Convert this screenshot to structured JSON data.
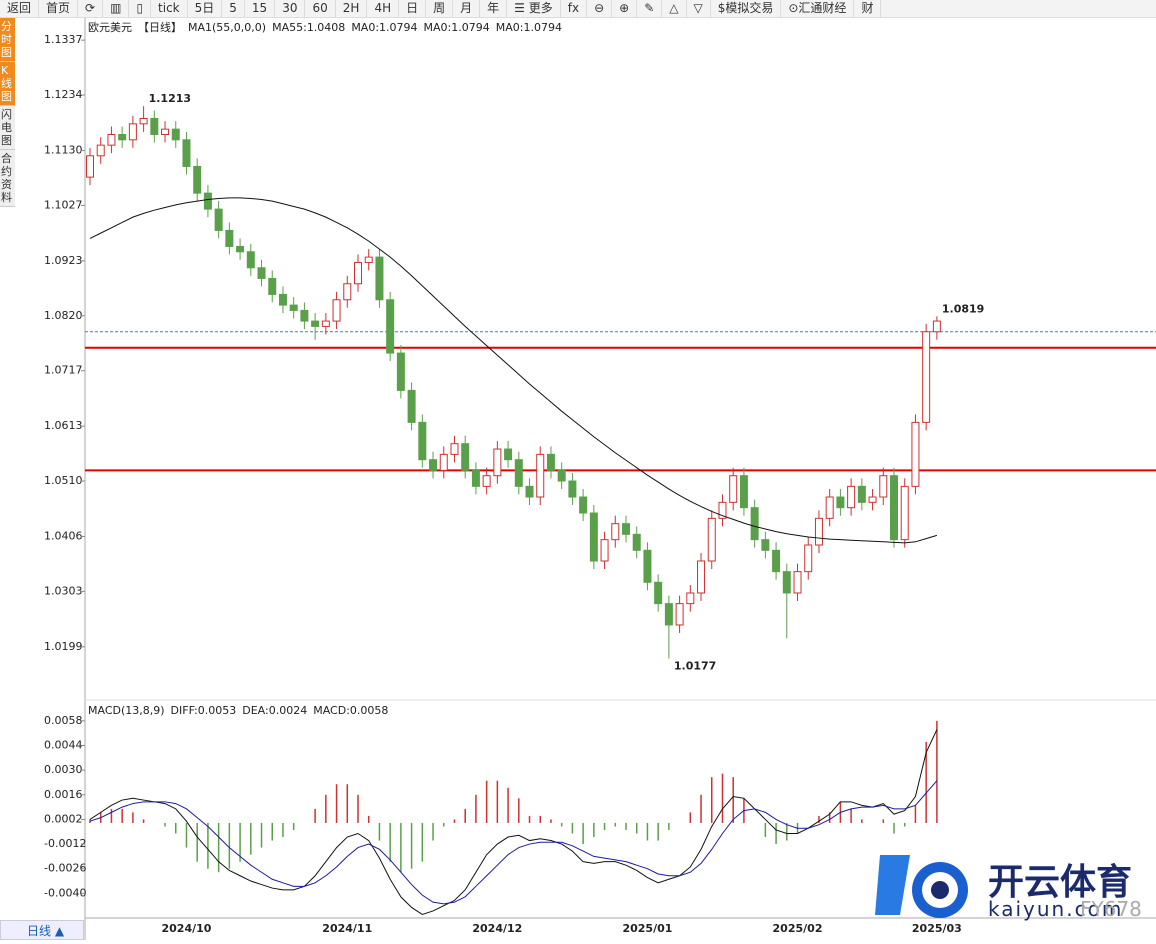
{
  "toolbar": [
    "返回",
    "首页",
    "⟳",
    "▥",
    "▯",
    "tick",
    "5日",
    "5",
    "15",
    "30",
    "60",
    "2H",
    "4H",
    "日",
    "周",
    "月",
    "年",
    "☰ 更多",
    "fx",
    "⊖",
    "⊕",
    "✎",
    "△",
    "▽",
    "$模拟交易",
    "⊙汇通财经",
    "财"
  ],
  "sidebar": [
    "分时图",
    "K线图",
    "闪电图",
    "合约资料"
  ],
  "footer": "日线 ▲",
  "watermark": {
    "brand": "开云体育",
    "site": "kaiyun.com",
    "code": "FY678"
  },
  "chart_data": [
    {
      "type": "candlestick",
      "legend": [
        {
          "text": "欧元美元",
          "color": "#222"
        },
        {
          "text": "【日线】",
          "color": "#e07020"
        },
        {
          "text": "MA1(55,0,0,0)",
          "color": "#222"
        },
        {
          "text": "MA55:1.0408",
          "color": "#222"
        },
        {
          "text": "MA0:1.0794",
          "color": "#1a1aa0"
        },
        {
          "text": "MA0:1.0794",
          "color": "#e020e0"
        },
        {
          "text": "MA0:1.0794",
          "color": "#f08a1c"
        }
      ],
      "categories": [
        null,
        null,
        null,
        null,
        null,
        null,
        null,
        null,
        null,
        "2024/10",
        null,
        null,
        null,
        null,
        null,
        null,
        null,
        null,
        null,
        null,
        null,
        null,
        null,
        null,
        "2024/11",
        null,
        null,
        null,
        null,
        null,
        null,
        null,
        null,
        null,
        null,
        null,
        null,
        null,
        "2024/12",
        null,
        null,
        null,
        null,
        null,
        null,
        null,
        null,
        null,
        null,
        null,
        null,
        null,
        "2025/01",
        null,
        null,
        null,
        null,
        null,
        null,
        null,
        null,
        null,
        null,
        null,
        null,
        null,
        "2025/02",
        null,
        null,
        null,
        null,
        null,
        null,
        null,
        null,
        null,
        null,
        null,
        null,
        "2025/03"
      ],
      "open": [
        1.108,
        1.112,
        1.114,
        1.116,
        1.115,
        1.118,
        1.119,
        1.116,
        1.117,
        1.115,
        1.11,
        1.105,
        1.102,
        1.098,
        1.095,
        1.094,
        1.091,
        1.089,
        1.086,
        1.084,
        1.083,
        1.081,
        1.08,
        1.081,
        1.085,
        1.088,
        1.092,
        1.093,
        1.085,
        1.075,
        1.068,
        1.062,
        1.055,
        1.053,
        1.056,
        1.058,
        1.053,
        1.05,
        1.052,
        1.057,
        1.055,
        1.05,
        1.048,
        1.056,
        1.053,
        1.051,
        1.048,
        1.045,
        1.036,
        1.04,
        1.043,
        1.041,
        1.038,
        1.032,
        1.028,
        1.024,
        1.028,
        1.03,
        1.036,
        1.044,
        1.047,
        1.052,
        1.046,
        1.04,
        1.038,
        1.034,
        1.03,
        1.034,
        1.039,
        1.044,
        1.048,
        1.046,
        1.05,
        1.047,
        1.048,
        1.052,
        1.04,
        1.05,
        1.062,
        1.079
      ],
      "high": [
        1.1135,
        1.1155,
        1.1175,
        1.1175,
        1.1195,
        1.1213,
        1.1205,
        1.1185,
        1.1185,
        1.1165,
        1.1115,
        1.1065,
        1.1035,
        1.0995,
        1.0965,
        1.0955,
        1.0925,
        1.0905,
        1.0875,
        1.0855,
        1.0845,
        1.0825,
        1.0825,
        1.0865,
        1.0895,
        1.0935,
        1.0945,
        1.0945,
        1.0865,
        1.0765,
        1.0695,
        1.0635,
        1.0565,
        1.0575,
        1.0595,
        1.0595,
        1.0545,
        1.0535,
        1.0585,
        1.0585,
        1.0565,
        1.0515,
        1.0575,
        1.0575,
        1.0545,
        1.0525,
        1.0495,
        1.0465,
        1.0415,
        1.0445,
        1.0445,
        1.0425,
        1.0395,
        1.0335,
        1.0295,
        1.0295,
        1.0315,
        1.0375,
        1.0455,
        1.0485,
        1.0535,
        1.0535,
        1.0475,
        1.0415,
        1.0395,
        1.0355,
        1.0355,
        1.0405,
        1.0455,
        1.0495,
        1.0495,
        1.0515,
        1.0515,
        1.0495,
        1.0535,
        1.0535,
        1.0515,
        1.0635,
        1.0805,
        1.0819
      ],
      "low": [
        1.1065,
        1.1105,
        1.1125,
        1.1135,
        1.1135,
        1.1165,
        1.1145,
        1.1145,
        1.1135,
        1.1085,
        1.1035,
        1.1005,
        1.0965,
        1.0935,
        1.0925,
        1.0895,
        1.0875,
        1.0845,
        1.0825,
        1.0815,
        1.0795,
        1.0775,
        1.0785,
        1.0795,
        1.0835,
        1.0865,
        1.0905,
        1.0835,
        1.0735,
        1.0665,
        1.0605,
        1.0535,
        1.0515,
        1.0515,
        1.0545,
        1.0515,
        1.0485,
        1.0485,
        1.0505,
        1.0535,
        1.0485,
        1.0465,
        1.0465,
        1.0515,
        1.0495,
        1.0465,
        1.0435,
        1.0345,
        1.0345,
        1.0385,
        1.0395,
        1.0365,
        1.0305,
        1.0265,
        1.0177,
        1.0225,
        1.0265,
        1.0285,
        1.0345,
        1.0425,
        1.0455,
        1.0445,
        1.0385,
        1.0365,
        1.0325,
        1.0215,
        1.0285,
        1.0325,
        1.0375,
        1.0425,
        1.0445,
        1.0445,
        1.0455,
        1.0455,
        1.0465,
        1.0385,
        1.0385,
        1.0485,
        1.0605,
        1.0775
      ],
      "close": [
        1.112,
        1.114,
        1.116,
        1.115,
        1.118,
        1.119,
        1.116,
        1.117,
        1.115,
        1.11,
        1.105,
        1.102,
        1.098,
        1.095,
        1.094,
        1.091,
        1.089,
        1.086,
        1.084,
        1.083,
        1.081,
        1.08,
        1.081,
        1.085,
        1.088,
        1.092,
        1.093,
        1.085,
        1.075,
        1.068,
        1.062,
        1.055,
        1.053,
        1.056,
        1.058,
        1.053,
        1.05,
        1.052,
        1.057,
        1.055,
        1.05,
        1.048,
        1.056,
        1.053,
        1.051,
        1.048,
        1.045,
        1.036,
        1.04,
        1.043,
        1.041,
        1.038,
        1.032,
        1.028,
        1.024,
        1.028,
        1.03,
        1.036,
        1.044,
        1.047,
        1.052,
        1.046,
        1.04,
        1.038,
        1.034,
        1.03,
        1.034,
        1.039,
        1.044,
        1.048,
        1.046,
        1.05,
        1.047,
        1.048,
        1.052,
        1.04,
        1.05,
        1.062,
        1.079,
        1.081
      ],
      "up_color": "#d03030",
      "down_color": "#5aa04a",
      "ma": {
        "color": "#111",
        "values": [
          1.0965,
          1.0975,
          1.0985,
          1.0995,
          1.1005,
          1.1012,
          1.1018,
          1.1023,
          1.1028,
          1.1032,
          1.1035,
          1.1038,
          1.104,
          1.1041,
          1.1041,
          1.104,
          1.1038,
          1.1035,
          1.103,
          1.1025,
          1.102,
          1.1013,
          1.1005,
          1.0995,
          1.0985,
          1.0973,
          1.096,
          1.0945,
          1.093,
          1.0913,
          1.0895,
          1.0876,
          1.0857,
          1.0838,
          1.0819,
          1.08,
          1.0782,
          1.0764,
          1.0746,
          1.0728,
          1.071,
          1.0692,
          1.0675,
          1.0658,
          1.0641,
          1.0625,
          1.0609,
          1.0593,
          1.0578,
          1.0563,
          1.0549,
          1.0535,
          1.0521,
          1.0508,
          1.0495,
          1.0483,
          1.0472,
          1.0462,
          1.0453,
          1.0445,
          1.0438,
          1.0431,
          1.0425,
          1.042,
          1.0415,
          1.0411,
          1.0408,
          1.0405,
          1.0403,
          1.0401,
          1.04,
          1.0399,
          1.0398,
          1.0397,
          1.0396,
          1.0395,
          1.0394,
          1.0396,
          1.0402,
          1.0408
        ]
      },
      "hlines": [
        {
          "value": 1.079,
          "color": "#3a7fd0",
          "dashed": true
        },
        {
          "value": 1.076,
          "color": "#e00000",
          "dashed": false
        },
        {
          "value": 1.053,
          "color": "#e00000",
          "dashed": false
        }
      ],
      "annotations": [
        {
          "value": 1.1213,
          "color": "#d03030"
        },
        {
          "value": 1.0177,
          "color": "#4a9a3a"
        },
        {
          "value": 1.0819,
          "color": "#d03030"
        }
      ],
      "ylim": [
        1.0103,
        1.1371
      ],
      "yticks": [
        1.1337,
        1.1234,
        {
          "value": 1.113,
          "label": "1.1130"
        },
        1.1027,
        1.0923,
        {
          "value": 1.082,
          "label": "1.0820"
        },
        1.0717,
        1.0613,
        {
          "value": 1.051,
          "label": "1.0510"
        },
        1.0406,
        1.0303,
        1.0199
      ]
    },
    {
      "type": "macd",
      "legend": [
        {
          "text": "MACD(13,8,9)",
          "color": "#222"
        },
        {
          "text": "DIFF:0.0053",
          "color": "#222"
        },
        {
          "text": "DEA:0.0024",
          "color": "#1a1aa0"
        },
        {
          "text": "MACD:0.0058",
          "color": "#e020e0"
        }
      ],
      "diff": {
        "color": "#111",
        "values": [
          0.0002,
          0.0006,
          0.001,
          0.0013,
          0.0014,
          0.0013,
          0.0012,
          0.0011,
          0.0008,
          0.0001,
          -0.0008,
          -0.0015,
          -0.0022,
          -0.0027,
          -0.003,
          -0.0033,
          -0.0035,
          -0.0037,
          -0.0038,
          -0.0038,
          -0.0036,
          -0.003,
          -0.0022,
          -0.0014,
          -0.0008,
          -0.0006,
          -0.001,
          -0.002,
          -0.0032,
          -0.0042,
          -0.0048,
          -0.0052,
          -0.005,
          -0.0047,
          -0.0044,
          -0.0038,
          -0.0028,
          -0.0018,
          -0.0012,
          -0.0008,
          -0.0007,
          -0.001,
          -0.0009,
          -0.001,
          -0.0012,
          -0.0016,
          -0.0022,
          -0.0023,
          -0.0022,
          -0.0022,
          -0.0024,
          -0.0027,
          -0.0031,
          -0.0034,
          -0.0032,
          -0.003,
          -0.0025,
          -0.0015,
          -0.0002,
          0.0008,
          0.0015,
          0.0014,
          0.0008,
          0.0002,
          -0.0004,
          -0.0006,
          -0.0006,
          -0.0003,
          0.0001,
          0.0005,
          0.0012,
          0.0012,
          0.001,
          0.0009,
          0.0011,
          0.0005,
          0.0007,
          0.0015,
          0.004,
          0.0053
        ]
      },
      "dea": {
        "color": "#1a1aa0",
        "values": [
          0.0001,
          0.0003,
          0.0006,
          0.0009,
          0.0011,
          0.0012,
          0.0012,
          0.0012,
          0.0011,
          0.0008,
          0.0003,
          -0.0002,
          -0.0008,
          -0.0014,
          -0.0019,
          -0.0024,
          -0.0028,
          -0.0032,
          -0.0034,
          -0.0036,
          -0.0036,
          -0.0034,
          -0.003,
          -0.0025,
          -0.0019,
          -0.0014,
          -0.0012,
          -0.0015,
          -0.0021,
          -0.0028,
          -0.0035,
          -0.0041,
          -0.0045,
          -0.0046,
          -0.0045,
          -0.0042,
          -0.0036,
          -0.003,
          -0.0024,
          -0.0018,
          -0.0014,
          -0.0012,
          -0.0011,
          -0.0011,
          -0.0011,
          -0.0013,
          -0.0016,
          -0.0019,
          -0.002,
          -0.0021,
          -0.0022,
          -0.0024,
          -0.0026,
          -0.0029,
          -0.003,
          -0.003,
          -0.0028,
          -0.0023,
          -0.0015,
          -0.0006,
          0.0002,
          0.0007,
          0.0008,
          0.0006,
          0.0002,
          -0.0001,
          -0.0003,
          -0.0003,
          -0.0001,
          0.0002,
          0.0006,
          0.0008,
          0.0009,
          0.0009,
          0.001,
          0.0008,
          0.0008,
          0.001,
          0.0017,
          0.0024
        ]
      },
      "macd": {
        "up_color": "#d03030",
        "down_color": "#5aa04a",
        "values": [
          0.0002,
          0.0006,
          0.0008,
          0.0008,
          0.0006,
          0.0002,
          0,
          -0.0002,
          -0.0006,
          -0.0014,
          -0.0022,
          -0.0026,
          -0.0028,
          -0.0026,
          -0.0022,
          -0.0018,
          -0.0014,
          -0.001,
          -0.0008,
          -0.0004,
          0,
          0.0008,
          0.0016,
          0.0022,
          0.0022,
          0.0016,
          0.0004,
          -0.001,
          -0.0022,
          -0.0028,
          -0.0026,
          -0.0022,
          -0.001,
          -0.0002,
          0.0002,
          0.0008,
          0.0016,
          0.0024,
          0.0024,
          0.002,
          0.0014,
          0.0004,
          0.0004,
          0.0002,
          -0.0002,
          -0.0006,
          -0.0012,
          -0.0008,
          -0.0004,
          -0.0002,
          -0.0004,
          -0.0006,
          -0.001,
          -0.001,
          -0.0004,
          0,
          0.0006,
          0.0016,
          0.0026,
          0.0028,
          0.0026,
          0.0014,
          0,
          -0.0008,
          -0.0012,
          -0.001,
          -0.0006,
          0,
          0.0004,
          0.0006,
          0.0012,
          0.0008,
          0.0002,
          0,
          0.0002,
          -0.0006,
          -0.0002,
          0.001,
          0.0046,
          0.0058
        ]
      },
      "ylim": [
        -0.0054,
        0.0067
      ],
      "yticks": [
        0.0058,
        0.0044,
        {
          "value": 0.003,
          "label": "0.0030"
        },
        0.0016,
        0.0002,
        -0.0012,
        -0.0026,
        {
          "value": -0.004,
          "label": "-0.0040"
        }
      ]
    }
  ]
}
